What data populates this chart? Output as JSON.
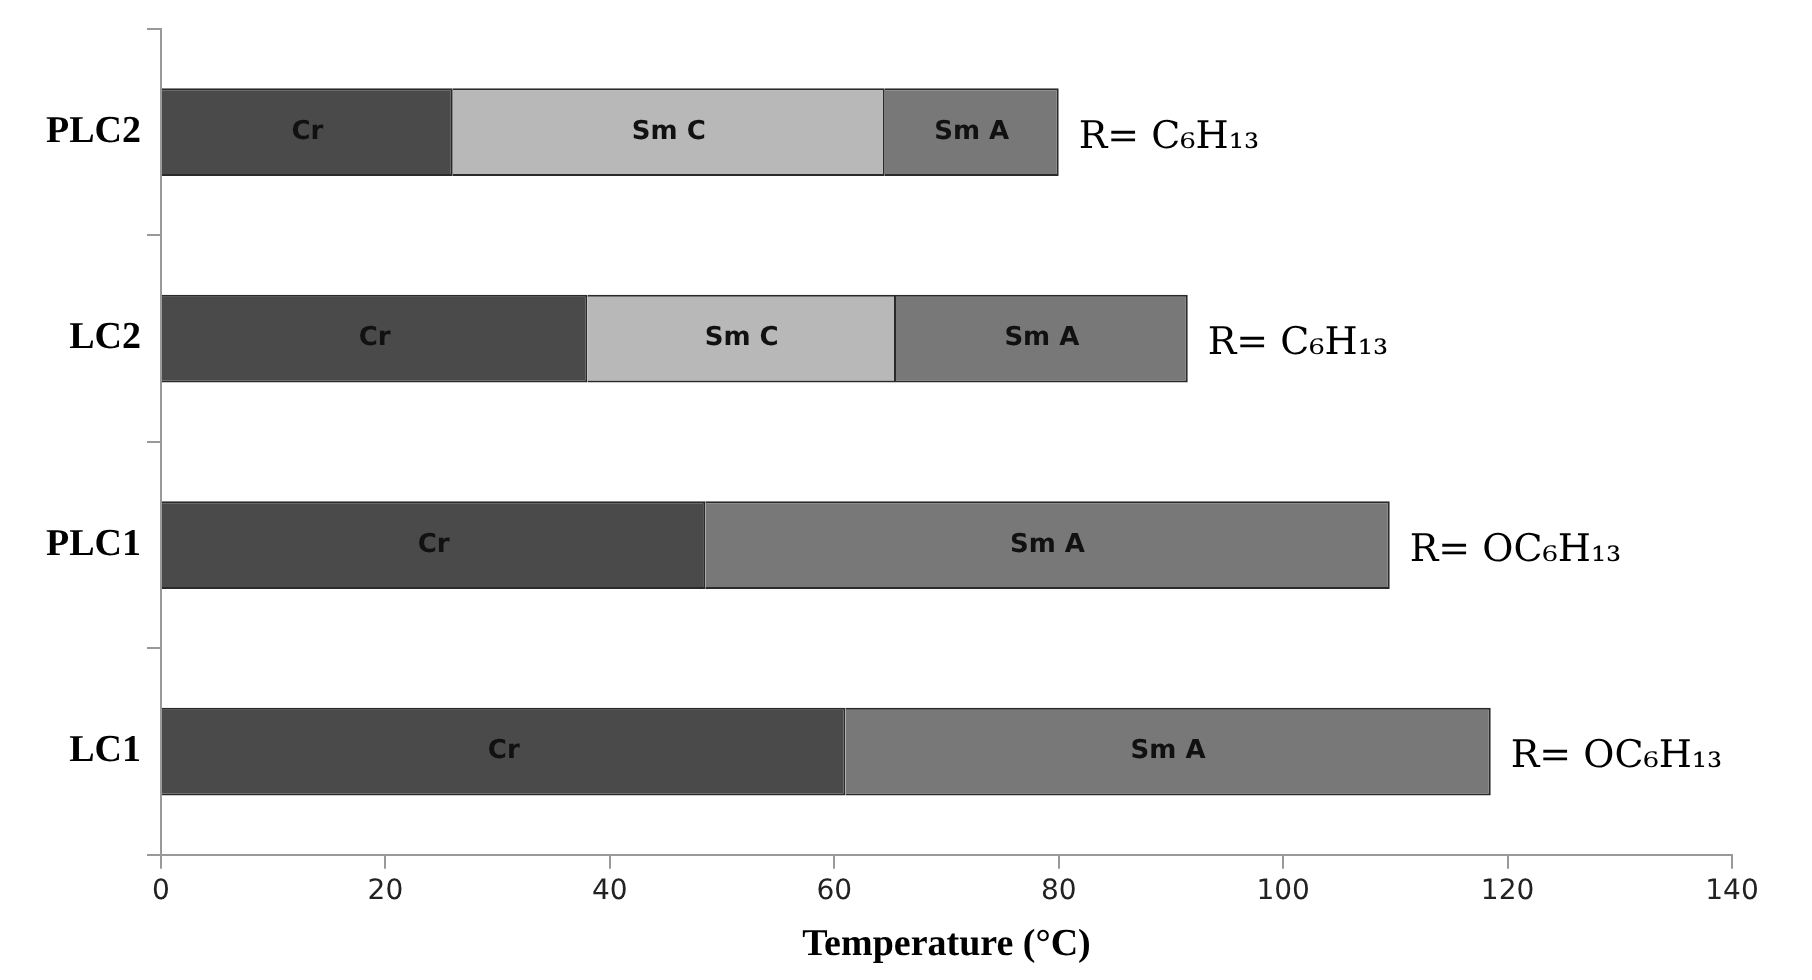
{
  "chart_data": {
    "type": "bar",
    "orientation": "horizontal",
    "stacked": true,
    "categories": [
      "PLC2",
      "LC2",
      "PLC1",
      "LC1"
    ],
    "series": [
      {
        "name": "Cr",
        "color": "#4a4a4a",
        "values": [
          26,
          38,
          48.5,
          61
        ]
      },
      {
        "name": "Sm C",
        "color": "#b8b8b8",
        "values": [
          38.5,
          27.5,
          null,
          null
        ]
      },
      {
        "name": "Sm A",
        "color": "#787878",
        "values": [
          15.5,
          26,
          61,
          57.5
        ]
      }
    ],
    "xlabel": "Temperature (°C)",
    "xlim": [
      0,
      140
    ],
    "xticks": [
      0,
      20,
      40,
      60,
      80,
      100,
      120,
      140
    ],
    "grid": false,
    "legend": false,
    "annotations": [
      {
        "text": "R= C₆H₁₃",
        "x": 80,
        "y": "PLC2"
      },
      {
        "text": "R= C₆H₁₃",
        "x": 91.5,
        "y": "LC2"
      },
      {
        "text": "R= OC₆H₁₃",
        "x": 109.5,
        "y": "PLC1"
      },
      {
        "text": "R= OC₆H₁₃",
        "x": 118.5,
        "y": "LC1"
      }
    ]
  }
}
